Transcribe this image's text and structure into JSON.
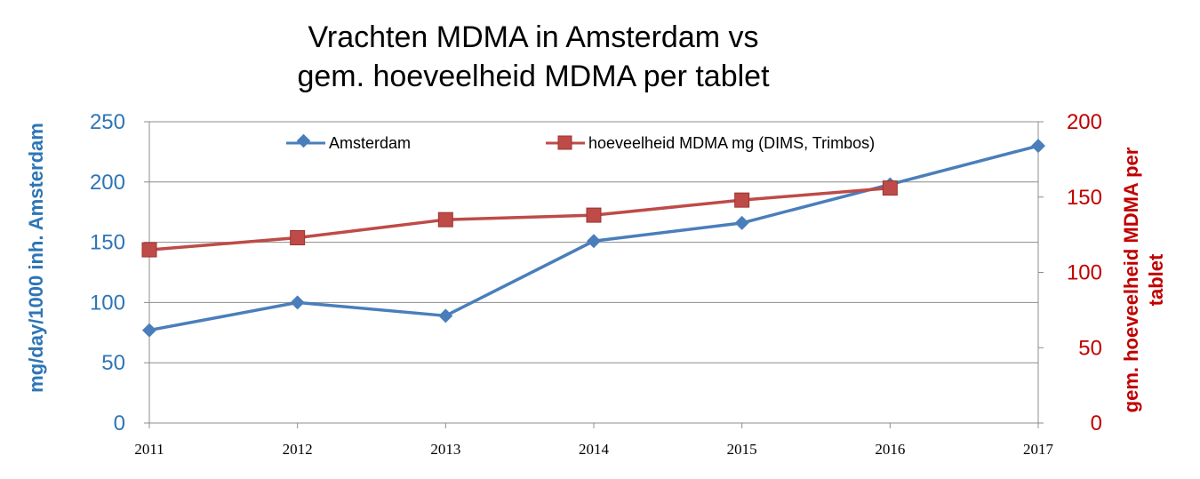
{
  "chart_data": {
    "type": "line",
    "title": [
      "Vrachten MDMA in Amsterdam vs",
      "gem. hoeveelheid MDMA per tablet"
    ],
    "x": [
      "2011",
      "2012",
      "2013",
      "2014",
      "2015",
      "2016",
      "2017"
    ],
    "y_left": {
      "label": "mg/day/1000 inh. Amsterdam",
      "ticks": [
        "0",
        "50",
        "100",
        "150",
        "200",
        "250"
      ],
      "range": [
        0,
        250
      ],
      "color": "#2e75b6"
    },
    "y_right": {
      "label": [
        "gem. hoeveelheid MDMA per",
        "tablet"
      ],
      "ticks": [
        "0",
        "50",
        "100",
        "150",
        "200"
      ],
      "range": [
        0,
        200
      ],
      "color": "#c00000"
    },
    "series": [
      {
        "name": "Amsterdam",
        "axis": "left",
        "color": "#4a7ebb",
        "marker": "diamond",
        "values": [
          77,
          100,
          89,
          151,
          166,
          198,
          230
        ]
      },
      {
        "name": "hoeveelheid MDMA mg (DIMS, Trimbos)",
        "axis": "right",
        "color": "#be4b48",
        "marker": "square",
        "values": [
          115,
          123,
          135,
          138,
          148,
          156,
          null
        ]
      }
    ],
    "grid": true,
    "legend": "top-inside"
  }
}
